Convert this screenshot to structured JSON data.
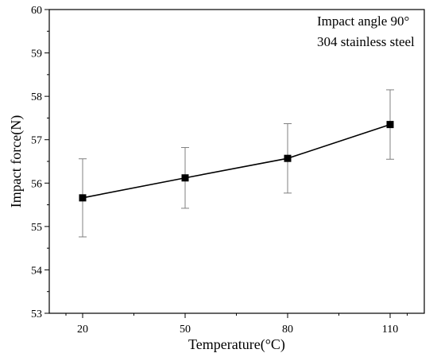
{
  "chart_data": {
    "type": "line",
    "title": "",
    "xlabel": "Temperature(°C)",
    "ylabel": "Impact force(N)",
    "categories": [
      "20",
      "50",
      "80",
      "110"
    ],
    "series": [
      {
        "values": [
          55.66,
          56.12,
          56.57,
          57.35
        ],
        "error_lower": [
          54.76,
          55.42,
          55.77,
          56.55
        ],
        "error_upper": [
          56.56,
          56.82,
          57.37,
          58.15
        ],
        "marker": "square"
      }
    ],
    "ylim": [
      53,
      60
    ],
    "yticks": [
      53,
      54,
      55,
      56,
      57,
      58,
      59,
      60
    ],
    "annotations": [
      "Impact angle 90°",
      "304 stainless steel"
    ],
    "grid": false,
    "legend": "none",
    "colors": {
      "line": "#000000",
      "errorbar": "#808080",
      "axes": "#000000"
    }
  }
}
